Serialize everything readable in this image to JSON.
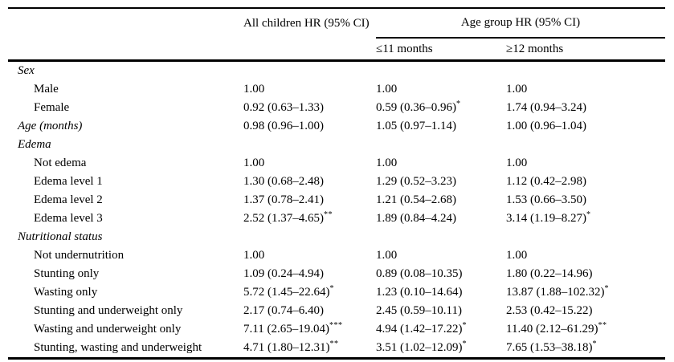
{
  "table": {
    "header": {
      "col_all": "All children HR (95% CI)",
      "col_group": "Age group HR (95% CI)",
      "sub_col_1": "≤11 months",
      "sub_col_2": "≥12 months"
    },
    "rows": [
      {
        "label": "Sex",
        "type": "section",
        "values": [
          "",
          "",
          ""
        ],
        "sups": [
          "",
          "",
          ""
        ]
      },
      {
        "label": "Male",
        "type": "item",
        "values": [
          "1.00",
          "1.00",
          "1.00"
        ],
        "sups": [
          "",
          "",
          ""
        ]
      },
      {
        "label": "Female",
        "type": "item",
        "values": [
          "0.92 (0.63–1.33)",
          "0.59 (0.36–0.96)",
          "1.74 (0.94–3.24)"
        ],
        "sups": [
          "",
          "*",
          ""
        ]
      },
      {
        "label": "Age (months)",
        "type": "section",
        "values": [
          "0.98 (0.96–1.00)",
          "1.05 (0.97–1.14)",
          "1.00 (0.96–1.04)"
        ],
        "sups": [
          "",
          "",
          ""
        ]
      },
      {
        "label": "Edema",
        "type": "section",
        "values": [
          "",
          "",
          ""
        ],
        "sups": [
          "",
          "",
          ""
        ]
      },
      {
        "label": "Not edema",
        "type": "item",
        "values": [
          "1.00",
          "1.00",
          "1.00"
        ],
        "sups": [
          "",
          "",
          ""
        ]
      },
      {
        "label": "Edema level 1",
        "type": "item",
        "values": [
          "1.30 (0.68–2.48)",
          "1.29 (0.52–3.23)",
          "1.12 (0.42–2.98)"
        ],
        "sups": [
          "",
          "",
          ""
        ]
      },
      {
        "label": "Edema level 2",
        "type": "item",
        "values": [
          "1.37 (0.78–2.41)",
          "1.21 (0.54–2.68)",
          "1.53 (0.66–3.50)"
        ],
        "sups": [
          "",
          "",
          ""
        ]
      },
      {
        "label": "Edema level 3",
        "type": "item",
        "values": [
          "2.52 (1.37–4.65)",
          "1.89 (0.84–4.24)",
          "3.14 (1.19–8.27)"
        ],
        "sups": [
          "**",
          "",
          "*"
        ]
      },
      {
        "label": "Nutritional status",
        "type": "section",
        "values": [
          "",
          "",
          ""
        ],
        "sups": [
          "",
          "",
          ""
        ]
      },
      {
        "label": "Not undernutrition",
        "type": "item",
        "values": [
          "1.00",
          "1.00",
          "1.00"
        ],
        "sups": [
          "",
          "",
          ""
        ]
      },
      {
        "label": "Stunting only",
        "type": "item",
        "values": [
          "1.09 (0.24–4.94)",
          "0.89 (0.08–10.35)",
          "1.80 (0.22–14.96)"
        ],
        "sups": [
          "",
          "",
          ""
        ]
      },
      {
        "label": "Wasting only",
        "type": "item",
        "values": [
          "5.72 (1.45–22.64)",
          "1.23 (0.10–14.64)",
          "13.87 (1.88–102.32)"
        ],
        "sups": [
          "*",
          "",
          "*"
        ]
      },
      {
        "label": "Stunting and underweight only",
        "type": "item",
        "values": [
          "2.17 (0.74–6.40)",
          "2.45 (0.59–10.11)",
          "2.53 (0.42–15.22)"
        ],
        "sups": [
          "",
          "",
          ""
        ]
      },
      {
        "label": "Wasting and underweight only",
        "type": "item",
        "values": [
          "7.11 (2.65–19.04)",
          "4.94 (1.42–17.22)",
          "11.40 (2.12–61.29)"
        ],
        "sups": [
          "***",
          "*",
          "**"
        ]
      },
      {
        "label": "Stunting, wasting and underweight",
        "type": "item",
        "values": [
          "4.71 (1.80–12.31)",
          "3.51 (1.02–12.09)",
          "7.65 (1.53–38.18)"
        ],
        "sups": [
          "**",
          "*",
          "*"
        ]
      }
    ]
  }
}
